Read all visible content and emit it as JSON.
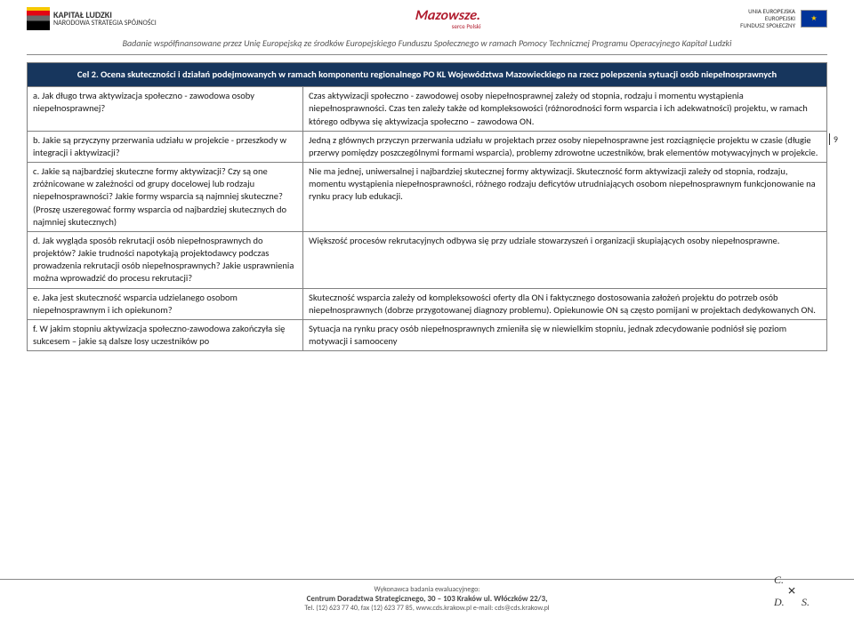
{
  "header": {
    "kl_strong": "KAPITAŁ LUDZKI",
    "kl_sub": "NARODOWA STRATEGIA SPÓJNOŚCI",
    "mz": "Mazowsze.",
    "mz_sub": "serce Polski",
    "eu_line1": "UNIA EUROPEJSKA",
    "eu_line2": "EUROPEJSKI",
    "eu_line3": "FUNDUSZ SPOŁECZNY",
    "subheader": "Badanie współfinansowane przez Unię Europejską ze środków Europejskiego Funduszu Społecznego w ramach Pomocy Technicznej Programu Operacyjnego Kapitał Ludzki"
  },
  "page_number": "9",
  "table": {
    "title": "Cel 2. Ocena skuteczności i działań podejmowanych w ramach komponentu regionalnego PO KL Województwa Mazowieckiego na rzecz polepszenia sytuacji osób niepełnosprawnych",
    "rows": [
      {
        "l": "a. Jak długo trwa aktywizacja społeczno - zawodowa osoby niepełnosprawnej?",
        "r": "Czas aktywizacji społeczno - zawodowej osoby niepełnosprawnej zależy od stopnia, rodzaju i momentu wystąpienia niepełnosprawności. Czas ten zależy także od kompleksowości (różnorodności form wsparcia i ich adekwatności) projektu, w ramach którego odbywa się aktywizacja społeczno – zawodowa ON."
      },
      {
        "l": "b. Jakie są przyczyny przerwania udziału w projekcie - przeszkody w integracji i aktywizacji?",
        "r": "Jedną z głównych przyczyn przerwania udziału w projektach przez osoby niepełnosprawne jest rozciągnięcie projektu w czasie (długie przerwy pomiędzy poszczególnymi formami wsparcia), problemy zdrowotne uczestników, brak elementów motywacyjnych w projekcie."
      },
      {
        "l": "c. Jakie są najbardziej skuteczne formy aktywizacji? Czy są one zróżnicowane w zależności od grupy docelowej lub rodzaju niepełnosprawności? Jakie formy wsparcia są najmniej skuteczne? (Proszę uszeregować formy wsparcia od najbardziej skutecznych do najmniej skutecznych)",
        "r": "Nie ma jednej, uniwersalnej i najbardziej skutecznej formy aktywizacji. Skuteczność form aktywizacji zależy od stopnia, rodzaju, momentu wystąpienia niepełnosprawności, różnego rodzaju deficytów utrudniających osobom niepełnosprawnym funkcjonowanie na rynku pracy lub edukacji."
      },
      {
        "l": "d. Jak wygląda sposób rekrutacji osób niepełnosprawnych do projektów? Jakie trudności napotykają projektodawcy podczas prowadzenia rekrutacji osób niepełnosprawnych? Jakie usprawnienia można wprowadzić do procesu rekrutacji?",
        "r": "Większość procesów rekrutacyjnych odbywa się przy udziale stowarzyszeń i organizacji skupiających osoby niepełnosprawne."
      },
      {
        "l": "e. Jaka jest skuteczność wsparcia udzielanego osobom niepełnosprawnym i ich opiekunom?",
        "r": "Skuteczność wsparcia zależy od kompleksowości oferty dla ON i faktycznego dostosowania założeń projektu do potrzeb osób niepełnosprawnych (dobrze przygotowanej diagnozy problemu). Opiekunowie ON są często pomijani w projektach dedykowanych ON."
      },
      {
        "l": "f. W jakim stopniu aktywizacja społeczno-zawodowa zakończyła się sukcesem – jakie są dalsze losy uczestników po",
        "r": "Sytuacja na rynku pracy osób niepełnosprawnych zmieniła się w niewielkim stopniu, jednak zdecydowanie podniósł się poziom motywacji i samooceny"
      }
    ]
  },
  "footer": {
    "l1": "Wykonawca badania ewaluacyjnego:",
    "l2": "Centrum Doradztwa Strategicznego, 30 – 103 Kraków ul. Włóczków 22/3,",
    "l3": "Tel. (12) 623 77 40, fax (12) 623 77 85, www.cds.krakow.pl e-mail: cds@cds.krakow.pl"
  }
}
